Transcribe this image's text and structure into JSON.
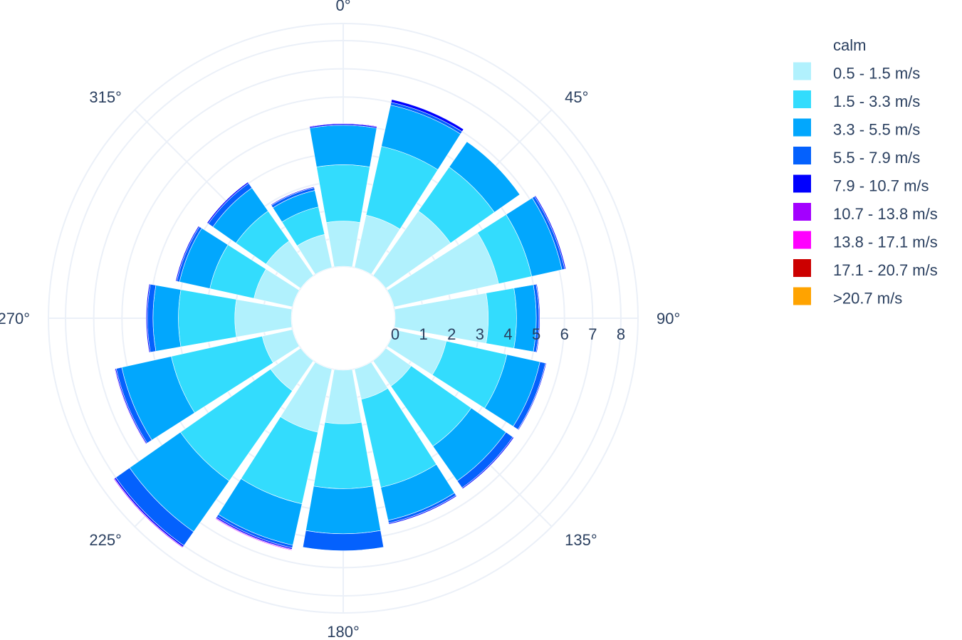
{
  "chart_data": {
    "type": "barpolar",
    "title": "",
    "direction": "clockwise",
    "rotation_start": "north",
    "angular_ticks": [
      "0°",
      "45°",
      "90°",
      "135°",
      "180°",
      "225°",
      "270°",
      "315°"
    ],
    "radial_ticks": [
      "0",
      "1",
      "2",
      "3",
      "4",
      "5",
      "6",
      "7",
      "8"
    ],
    "radial_range": [
      0,
      8
    ],
    "grid": true,
    "legend_position": "right",
    "hole_radius": 1.5,
    "directions": [
      0,
      22.5,
      45,
      67.5,
      90,
      112.5,
      135,
      157.5,
      180,
      202.5,
      225,
      247.5,
      270,
      292.5,
      315,
      337.5
    ],
    "sector_width": 20,
    "series": [
      {
        "name": "calm",
        "color": "#ffffff",
        "values": [
          0,
          0,
          0,
          0,
          0,
          0,
          0,
          0,
          0,
          0,
          0,
          0,
          0,
          0,
          0,
          0
        ]
      },
      {
        "name": "0.5 - 1.5 m/s",
        "color": "#b1f1fd",
        "values": [
          1.6,
          1.9,
          2.8,
          3.8,
          3.3,
          1.9,
          1.1,
          1.1,
          1.9,
          2.3,
          1.3,
          1.1,
          2.0,
          1.4,
          1.5,
          1.2
        ]
      },
      {
        "name": "1.5 - 3.3 m/s",
        "color": "#33dcfd",
        "values": [
          2.0,
          2.5,
          1.9,
          1.2,
          1.0,
          2.2,
          2.6,
          3.2,
          2.3,
          2.6,
          3.9,
          3.3,
          2.0,
          1.6,
          1.3,
          1.0
        ]
      },
      {
        "name": "3.3 - 5.5 m/s",
        "color": "#02a7fd",
        "values": [
          1.4,
          1.5,
          1.1,
          1.1,
          0.7,
          1.2,
          1.5,
          1.2,
          1.6,
          1.5,
          2.2,
          1.8,
          0.9,
          1.1,
          1.0,
          0.6
        ]
      },
      {
        "name": "5.5 - 7.9 m/s",
        "color": "#0461fd",
        "values": [
          0.0,
          0.1,
          0.0,
          0.1,
          0.1,
          0.2,
          0.3,
          0.1,
          0.6,
          0.1,
          0.6,
          0.2,
          0.2,
          0.1,
          0.2,
          0.1
        ]
      },
      {
        "name": "7.9 - 10.7 m/s",
        "color": "#0100fe",
        "values": [
          0.05,
          0.1,
          0.0,
          0.04,
          0.03,
          0.03,
          0.04,
          0.04,
          0.0,
          0.05,
          0.06,
          0.04,
          0.04,
          0.04,
          0.05,
          0.03
        ]
      },
      {
        "name": "10.7 - 13.8 m/s",
        "color": "#a300ff",
        "values": [
          0.02,
          0.0,
          0.0,
          0.0,
          0.0,
          0.0,
          0.0,
          0.0,
          0.0,
          0.03,
          0.03,
          0.02,
          0.0,
          0.0,
          0.0,
          0.0
        ]
      },
      {
        "name": "13.8 - 17.1 m/s",
        "color": "#ff00ff",
        "values": [
          0,
          0,
          0,
          0,
          0,
          0,
          0,
          0,
          0,
          0.02,
          0,
          0,
          0,
          0,
          0,
          0
        ]
      },
      {
        "name": "17.1 - 20.7 m/s",
        "color": "#cc0000",
        "values": [
          0,
          0,
          0,
          0,
          0,
          0,
          0,
          0,
          0,
          0,
          0,
          0,
          0,
          0,
          0,
          0
        ]
      },
      {
        "name": ">20.7 m/s",
        "color": "#ffa300",
        "values": [
          0,
          0,
          0,
          0,
          0,
          0,
          0,
          0,
          0,
          0,
          0,
          0,
          0,
          0,
          0,
          0
        ]
      }
    ]
  }
}
